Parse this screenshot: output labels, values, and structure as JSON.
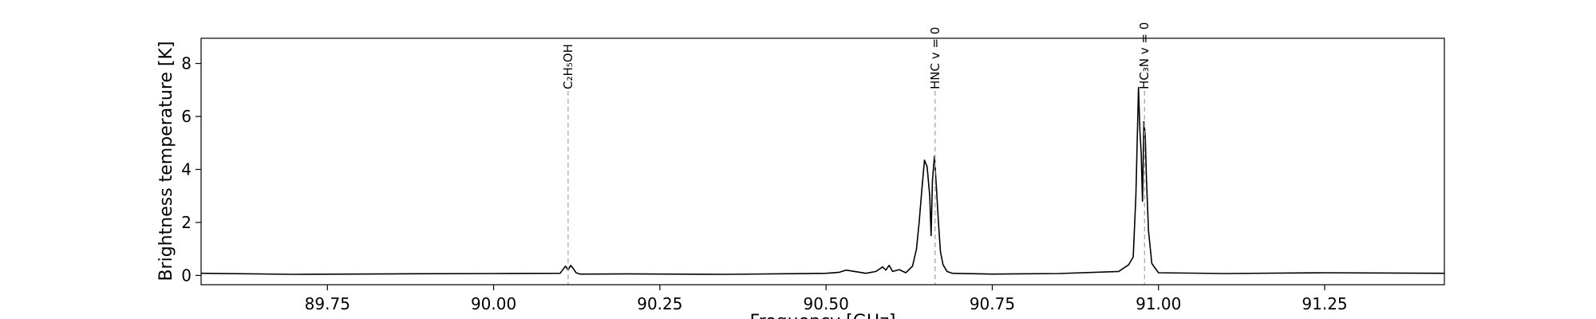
{
  "chart_data": {
    "type": "line",
    "xlabel": "Frequency [GHz]",
    "ylabel": "Brightness temperature [K]",
    "xlim": [
      89.56,
      91.43
    ],
    "ylim": [
      -0.35,
      8.95
    ],
    "x_ticks": [
      89.75,
      90.0,
      90.25,
      90.5,
      90.75,
      91.0,
      91.25
    ],
    "x_tick_labels": [
      "89.75",
      "90.00",
      "90.25",
      "90.50",
      "90.75",
      "91.00",
      "91.25"
    ],
    "y_ticks": [
      0,
      2,
      4,
      6,
      8
    ],
    "y_tick_labels": [
      "0",
      "2",
      "4",
      "6",
      "8"
    ],
    "grid": false,
    "series": [
      {
        "color": "#000000",
        "x": [
          89.56,
          89.7,
          89.85,
          90.0,
          90.1,
          90.108,
          90.112,
          90.116,
          90.12,
          90.124,
          90.13,
          90.2,
          90.35,
          90.5,
          90.52,
          90.53,
          90.56,
          90.575,
          90.585,
          90.59,
          90.595,
          90.6,
          90.61,
          90.62,
          90.63,
          90.636,
          90.64,
          90.644,
          90.648,
          90.652,
          90.656,
          90.658,
          90.66,
          90.663,
          90.666,
          90.669,
          90.672,
          90.676,
          90.682,
          90.69,
          90.75,
          90.85,
          90.94,
          90.955,
          90.962,
          90.966,
          90.97,
          90.972,
          90.974,
          90.976,
          90.978,
          90.98,
          90.982,
          90.985,
          90.99,
          91.0,
          91.1,
          91.25,
          91.43
        ],
        "y": [
          0.08,
          0.04,
          0.06,
          0.07,
          0.08,
          0.35,
          0.2,
          0.38,
          0.25,
          0.1,
          0.05,
          0.06,
          0.04,
          0.08,
          0.12,
          0.2,
          0.08,
          0.15,
          0.32,
          0.2,
          0.38,
          0.15,
          0.22,
          0.1,
          0.35,
          1.0,
          2.0,
          3.2,
          4.35,
          4.1,
          3.0,
          1.5,
          3.6,
          4.5,
          3.3,
          2.0,
          0.9,
          0.4,
          0.15,
          0.08,
          0.05,
          0.07,
          0.15,
          0.4,
          0.7,
          3.0,
          7.1,
          5.5,
          4.6,
          2.8,
          5.8,
          5.3,
          3.6,
          1.7,
          0.45,
          0.1,
          0.07,
          0.1,
          0.08
        ]
      }
    ],
    "annotations": [
      {
        "x": 90.112,
        "label": "C₂H₅OH"
      },
      {
        "x": 90.664,
        "label": "HNC v = 0"
      },
      {
        "x": 90.979,
        "label": "HC₃N v = 0"
      }
    ]
  }
}
